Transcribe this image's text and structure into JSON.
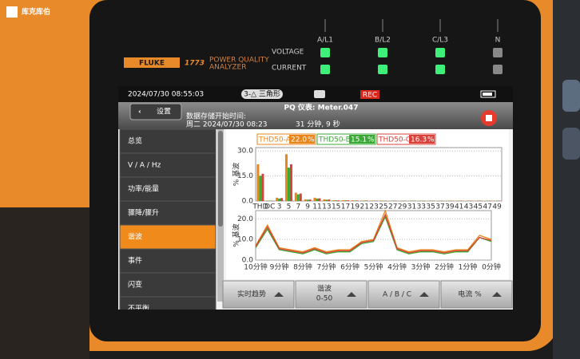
{
  "logo": {
    "text": "库克库伯"
  },
  "device": {
    "brand": "FLUKE",
    "model": "1773",
    "subtitle_1": "POWER QUALITY",
    "subtitle_2": "ANALYZER",
    "row_labels": [
      "VOLTAGE",
      "CURRENT"
    ],
    "phases": [
      "A/L1",
      "B/L2",
      "C/L3",
      "N"
    ]
  },
  "status_bar": {
    "datetime": "2024/07/30 08:55:03",
    "wiring": "3-△ 三角形",
    "rec": "REC"
  },
  "title_bar": {
    "back": "设置",
    "title": "PQ 仪表: Meter.047"
  },
  "info": {
    "start_label": "数据存储开始时间:",
    "start_time": "周二 2024/07/30 08:23",
    "duration": "31 分钟, 9 秒"
  },
  "menu": {
    "items": [
      "总览",
      "V / A / Hz",
      "功率/能量",
      "骤降/骤升",
      "谐波",
      "事件",
      "闪变",
      "不平衡"
    ],
    "selected": 4
  },
  "chart_data": [
    {
      "type": "bar",
      "y_label": "% 基波",
      "categories": [
        "THD",
        "DC",
        "3",
        "5",
        "7",
        "9",
        "11",
        "13",
        "15",
        "17",
        "19",
        "21",
        "23",
        "25",
        "27",
        "29",
        "31",
        "33",
        "35",
        "37",
        "39",
        "41",
        "43",
        "45",
        "47",
        "49"
      ],
      "series": [
        {
          "name": "THD50-A",
          "color": "#e8861c",
          "value_label": "22.0",
          "values": [
            22,
            0.3,
            2,
            28,
            5,
            1,
            2,
            1,
            0.5,
            0.5,
            0.4,
            0.3,
            0.3,
            0.3,
            0.2,
            0.2,
            0.2,
            0.2,
            0.2,
            0.2,
            0.2,
            0.2,
            0.2,
            0.2,
            0.2,
            0.2
          ]
        },
        {
          "name": "THD50-B",
          "color": "#3aa935",
          "value_label": "15.1",
          "values": [
            15.1,
            0.2,
            1.5,
            20,
            4,
            0.8,
            1.5,
            0.8,
            0.4,
            0.4,
            0.3,
            0.3,
            0.2,
            0.2,
            0.2,
            0.2,
            0.2,
            0.2,
            0.2,
            0.2,
            0.2,
            0.2,
            0.2,
            0.2,
            0.2,
            0.2
          ]
        },
        {
          "name": "THD50-C",
          "color": "#d9413a",
          "value_label": "16.3",
          "values": [
            16.3,
            0.2,
            1.8,
            22,
            4.5,
            0.9,
            1.6,
            0.9,
            0.4,
            0.4,
            0.3,
            0.3,
            0.2,
            0.2,
            0.2,
            0.2,
            0.2,
            0.2,
            0.2,
            0.2,
            0.2,
            0.2,
            0.2,
            0.2,
            0.2,
            0.2
          ]
        }
      ],
      "unit": "%",
      "ylim": [
        0,
        32
      ],
      "yticks": [
        {
          "value": 0,
          "label": "0.0"
        },
        {
          "value": 15,
          "label": "15.0"
        },
        {
          "value": 30,
          "label": "30.0"
        }
      ],
      "grid": true
    },
    {
      "type": "line",
      "y_label": "% 基波",
      "categories": [
        "10分钟",
        null,
        "9分钟",
        null,
        "8分钟",
        null,
        "7分钟",
        null,
        "6分钟",
        null,
        "5分钟",
        null,
        "4分钟",
        null,
        "3分钟",
        null,
        "2分钟",
        null,
        "1分钟",
        null,
        "0分钟"
      ],
      "series": [
        {
          "name": "THD50-A",
          "color": "#e8861c",
          "values": [
            7,
            17,
            6,
            5,
            4,
            6,
            4,
            5,
            5,
            9,
            10,
            24,
            6,
            4,
            5,
            5,
            4,
            5,
            5,
            12,
            10
          ]
        },
        {
          "name": "THD50-B",
          "color": "#3aa935",
          "values": [
            6,
            15,
            5,
            4,
            3,
            5,
            3,
            4,
            4,
            8,
            9,
            21,
            5,
            3,
            4,
            4,
            3,
            4,
            4,
            11,
            9
          ]
        },
        {
          "name": "THD50-C",
          "color": "#d9413a",
          "values": [
            6.5,
            16,
            5.5,
            4.5,
            3.5,
            5.5,
            3.5,
            4.5,
            4.5,
            8.5,
            9.5,
            22,
            5.5,
            3.5,
            4.5,
            4.5,
            3.5,
            4.5,
            4.5,
            11,
            9.5
          ]
        }
      ],
      "ylim": [
        0,
        24
      ],
      "yticks": [
        {
          "value": 0,
          "label": "0.0"
        },
        {
          "value": 10,
          "label": "10.0"
        },
        {
          "value": 20,
          "label": "20.0"
        }
      ],
      "grid": true
    }
  ],
  "bottom_buttons": [
    {
      "text": "实时趋势"
    },
    {
      "text": "谐波",
      "sub": "0-50"
    },
    {
      "text": "A / B / C"
    },
    {
      "text": "电流 %"
    }
  ]
}
